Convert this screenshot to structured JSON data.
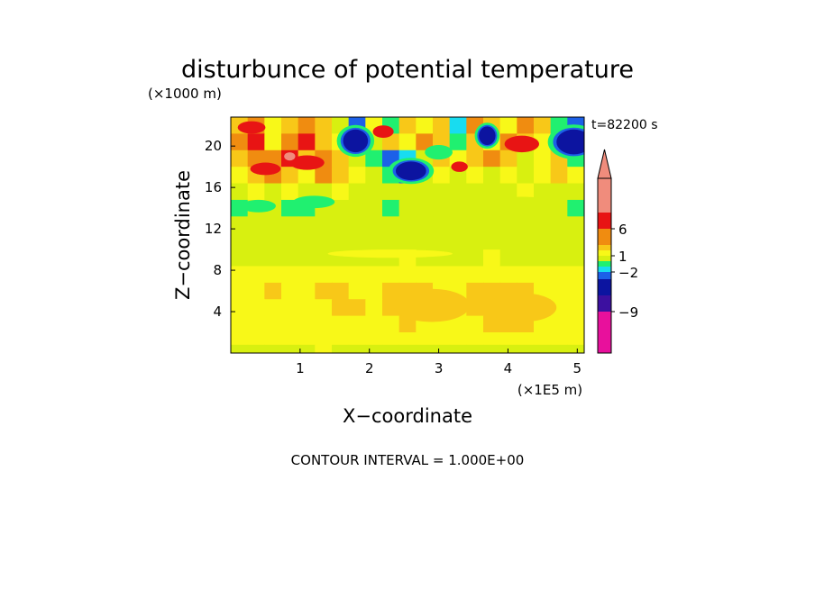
{
  "chart_data": {
    "type": "heatmap",
    "title": "disturbunce of potential temperature",
    "xlabel": "X−coordinate",
    "ylabel": "Z−coordinate",
    "x_unit": "(×1E5 m)",
    "y_unit": "(×1000 m)",
    "time_label": "t=82200 s",
    "footer": "CONTOUR INTERVAL = 1.000E+00",
    "xlim": [
      0,
      5.1
    ],
    "ylim": [
      0,
      22.8
    ],
    "x_ticks": [
      "1",
      "2",
      "3",
      "4",
      "5"
    ],
    "y_ticks": [
      "4",
      "8",
      "12",
      "16",
      "20"
    ],
    "colorbar_labels": [
      "6",
      "1",
      "−2",
      "−9"
    ],
    "colorbar": {
      "levels": [
        -12,
        -9,
        -7,
        -5,
        -2,
        -1,
        0,
        1,
        2,
        3,
        4,
        6,
        8
      ],
      "colors": [
        "#e8109c",
        "#8c14b4",
        "#3c10a0",
        "#0c14a0",
        "#1c60e8",
        "#18dcf0",
        "#20f070",
        "#d8f010",
        "#f8f818",
        "#f8c818",
        "#f08c10",
        "#e81414",
        "#f08c7c",
        "#f08c7c"
      ]
    },
    "field_rows": [
      {
        "z": [
          21.2,
          22.8
        ],
        "values": [
          2,
          3,
          1,
          2,
          3,
          2,
          0,
          -3,
          1,
          -1,
          2,
          1,
          2,
          -2,
          3,
          2,
          1,
          3,
          2,
          -1,
          -3
        ]
      },
      {
        "z": [
          19.6,
          21.2
        ],
        "values": [
          3,
          4,
          1,
          3,
          4,
          2,
          1,
          -4,
          0,
          2,
          1,
          3,
          2,
          -1,
          2,
          1,
          3,
          2,
          1,
          -2,
          -4
        ]
      },
      {
        "z": [
          18.0,
          19.6
        ],
        "values": [
          2,
          3,
          3,
          4,
          2,
          3,
          2,
          0,
          -1,
          -3,
          -2,
          0,
          2,
          1,
          2,
          3,
          2,
          0,
          1,
          2,
          -1
        ]
      },
      {
        "z": [
          16.4,
          18.0
        ],
        "values": [
          1,
          2,
          3,
          2,
          1,
          3,
          2,
          1,
          0,
          -1,
          -3,
          0,
          1,
          0,
          1,
          0,
          1,
          0,
          1,
          2,
          1
        ]
      },
      {
        "z": [
          14.8,
          16.4
        ],
        "values": [
          0,
          1,
          0,
          1,
          0,
          0,
          1,
          0,
          0,
          0,
          0,
          0,
          0,
          0,
          0,
          0,
          0,
          1,
          0,
          0,
          0
        ]
      },
      {
        "z": [
          13.2,
          14.8
        ],
        "values": [
          -1,
          0,
          0,
          -1,
          -1,
          0,
          0,
          0,
          0,
          -1,
          0,
          0,
          0,
          0,
          0,
          0,
          0,
          0,
          0,
          0,
          -1
        ]
      },
      {
        "z": [
          10.0,
          13.2
        ],
        "values": [
          0,
          0,
          0,
          0,
          0,
          0,
          0,
          0,
          0,
          0,
          0,
          0,
          0,
          0,
          0,
          0,
          0,
          0,
          0,
          0,
          0
        ]
      },
      {
        "z": [
          8.4,
          10.0
        ],
        "values": [
          0,
          0,
          0,
          0,
          0,
          0,
          0,
          0,
          0,
          0,
          1,
          0,
          0,
          0,
          0,
          1,
          0,
          0,
          0,
          0,
          0
        ]
      },
      {
        "z": [
          6.8,
          8.4
        ],
        "values": [
          1,
          1,
          1,
          1,
          1,
          1,
          1,
          1,
          1,
          1,
          1,
          1,
          1,
          1,
          1,
          1,
          1,
          1,
          1,
          1,
          1
        ]
      },
      {
        "z": [
          5.2,
          6.8
        ],
        "values": [
          1,
          1,
          2,
          1,
          1,
          2,
          2,
          1,
          1,
          2,
          2,
          2,
          1,
          1,
          2,
          2,
          2,
          2,
          1,
          1,
          1
        ]
      },
      {
        "z": [
          3.6,
          5.2
        ],
        "values": [
          1,
          1,
          1,
          1,
          1,
          1,
          2,
          2,
          1,
          2,
          2,
          2,
          1,
          1,
          2,
          2,
          2,
          2,
          2,
          1,
          1
        ]
      },
      {
        "z": [
          2.0,
          3.6
        ],
        "values": [
          1,
          1,
          1,
          1,
          1,
          1,
          1,
          1,
          1,
          1,
          2,
          1,
          1,
          1,
          1,
          2,
          2,
          2,
          1,
          1,
          1
        ]
      },
      {
        "z": [
          0.8,
          2.0
        ],
        "values": [
          1,
          1,
          1,
          1,
          1,
          1,
          1,
          1,
          1,
          1,
          1,
          1,
          1,
          1,
          1,
          1,
          1,
          1,
          1,
          1,
          1
        ]
      },
      {
        "z": [
          0.0,
          0.8
        ],
        "values": [
          0,
          0,
          0,
          0,
          0,
          1,
          0,
          0,
          0,
          0,
          0,
          0,
          0,
          0,
          0,
          0,
          0,
          0,
          0,
          0,
          0
        ]
      }
    ],
    "anomalies": [
      {
        "x": 1.8,
        "z": 20.5,
        "rx": 0.18,
        "rz": 1.1,
        "value": -7
      },
      {
        "x": 2.6,
        "z": 17.6,
        "rx": 0.22,
        "rz": 0.9,
        "value": -7
      },
      {
        "x": 3.7,
        "z": 21.0,
        "rx": 0.12,
        "rz": 0.9,
        "value": -7
      },
      {
        "x": 4.95,
        "z": 20.4,
        "rx": 0.25,
        "rz": 1.2,
        "value": -7
      },
      {
        "x": 3.0,
        "z": 19.4,
        "rx": 0.2,
        "rz": 0.7,
        "value": -1
      },
      {
        "x": 0.4,
        "z": 14.2,
        "rx": 0.25,
        "rz": 0.6,
        "value": -1
      },
      {
        "x": 1.2,
        "z": 14.6,
        "rx": 0.3,
        "rz": 0.6,
        "value": -1
      },
      {
        "x": 0.3,
        "z": 21.8,
        "rx": 0.2,
        "rz": 0.6,
        "value": 4
      },
      {
        "x": 1.1,
        "z": 18.4,
        "rx": 0.25,
        "rz": 0.7,
        "value": 4
      },
      {
        "x": 0.5,
        "z": 17.8,
        "rx": 0.22,
        "rz": 0.6,
        "value": 4
      },
      {
        "x": 2.2,
        "z": 21.4,
        "rx": 0.15,
        "rz": 0.6,
        "value": 4
      },
      {
        "x": 4.2,
        "z": 20.2,
        "rx": 0.25,
        "rz": 0.8,
        "value": 4
      },
      {
        "x": 0.85,
        "z": 19.0,
        "rx": 0.08,
        "rz": 0.4,
        "value": 6
      },
      {
        "x": 3.3,
        "z": 18.0,
        "rx": 0.12,
        "rz": 0.5,
        "value": 4
      },
      {
        "x": 2.9,
        "z": 4.6,
        "rx": 0.55,
        "rz": 1.6,
        "value": 2
      },
      {
        "x": 4.2,
        "z": 4.4,
        "rx": 0.5,
        "rz": 1.4,
        "value": 2
      },
      {
        "x": 4.2,
        "z": 14.6,
        "rx": 0.4,
        "rz": 0.5,
        "value": 0
      },
      {
        "x": 2.3,
        "z": 9.6,
        "rx": 0.9,
        "rz": 0.4,
        "value": 1
      }
    ]
  }
}
